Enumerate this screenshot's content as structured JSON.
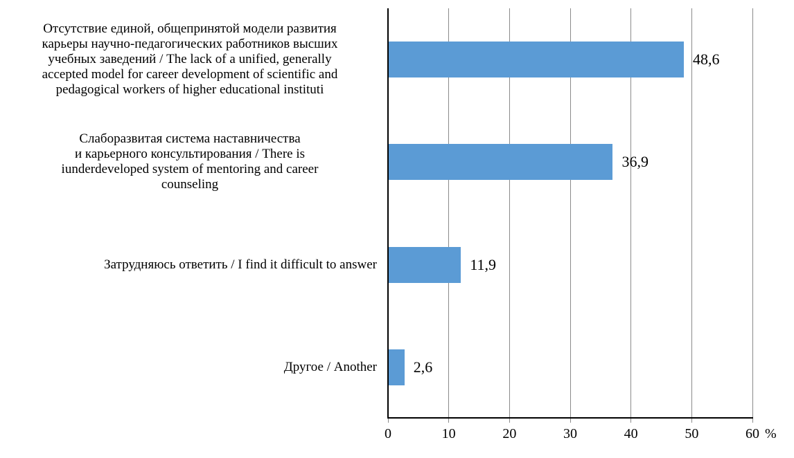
{
  "chart_data": {
    "type": "bar",
    "orientation": "horizontal",
    "title": "",
    "legend": "none",
    "grid": "vertical_major",
    "xlim": [
      0,
      60
    ],
    "x_ticks": [
      "0",
      "10",
      "20",
      "30",
      "40",
      "50",
      "60"
    ],
    "x_unit": "%",
    "categories": [
      "Отсутствие единой, общепринятой модели развития карьеры научно-педагогических работников высших учебных заведений / The lack of a unified, generally accepted model for career development of scientific and pedagogical workers of higher educational instituti",
      "Слаборазвитая система наставничества и карьерного консультирования / There is iunderdeveloped system of mentoring and career counseling",
      "Затрудняюсь ответить / I find it difficult to answer",
      "Другое / Another"
    ],
    "category_display_lines": [
      [
        "Отсутствие единой, общепринятой модели развития",
        "карьеры научно-педагогических работников высших",
        "учебных заведений / The lack of a unified, generally",
        "accepted model for career development of scientific and",
        "pedagogical workers of higher educational instituti"
      ],
      [
        "Слаборазвитая система наставничества",
        "и карьерного консультирования / There is",
        "iunderdeveloped system of mentoring and career",
        "counseling"
      ],
      [
        "Затрудняюсь ответить / I find it difficult to answer"
      ],
      [
        "Другое / Another"
      ]
    ],
    "values": [
      48.6,
      36.9,
      11.9,
      2.6
    ],
    "value_labels": [
      "48,6",
      "36,9",
      "11,9",
      "2,6"
    ],
    "colors": {
      "bar": "#5B9BD5",
      "gridline": "#8A8A8A",
      "axis": "#000000",
      "text": "#000000",
      "background": "#FFFFFF"
    }
  }
}
